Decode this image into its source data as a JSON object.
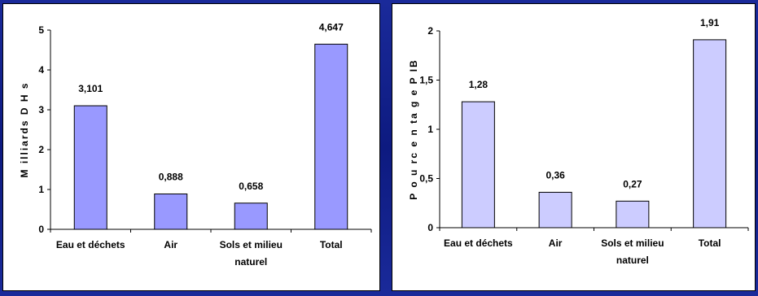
{
  "chart_data": [
    {
      "type": "bar",
      "ylabel": "M illiards D H s",
      "categories": [
        "Eau et déchets",
        "Air",
        "Sols et milieu naturel",
        "Total"
      ],
      "category_lines": [
        [
          "Eau et déchets"
        ],
        [
          "Air"
        ],
        [
          "Sols et milieu",
          "naturel"
        ],
        [
          "Total"
        ]
      ],
      "values": [
        3.101,
        0.888,
        0.658,
        4.647
      ],
      "data_labels": [
        "3,101",
        "0,888",
        "0,658",
        "4,647"
      ],
      "yticks": [
        0,
        1,
        2,
        3,
        4,
        5
      ],
      "ytick_labels": [
        "0",
        "1",
        "2",
        "3",
        "4",
        "5"
      ],
      "ylim": [
        0,
        5
      ],
      "bar_color": "#9999ff",
      "grid": false
    },
    {
      "type": "bar",
      "ylabel": "P o u rc e n ta g e P IB",
      "categories": [
        "Eau et déchets",
        "Air",
        "Sols et milieu naturel",
        "Total"
      ],
      "category_lines": [
        [
          "Eau et déchets"
        ],
        [
          "Air"
        ],
        [
          "Sols et milieu",
          "naturel"
        ],
        [
          "Total"
        ]
      ],
      "values": [
        1.28,
        0.36,
        0.27,
        1.91
      ],
      "data_labels": [
        "1,28",
        "0,36",
        "0,27",
        "1,91"
      ],
      "yticks": [
        0,
        0.5,
        1,
        1.5,
        2
      ],
      "ytick_labels": [
        "0",
        "0,5",
        "1",
        "1,5",
        "2"
      ],
      "ylim": [
        0,
        2
      ],
      "bar_color": "#ccccff",
      "grid": false
    }
  ]
}
